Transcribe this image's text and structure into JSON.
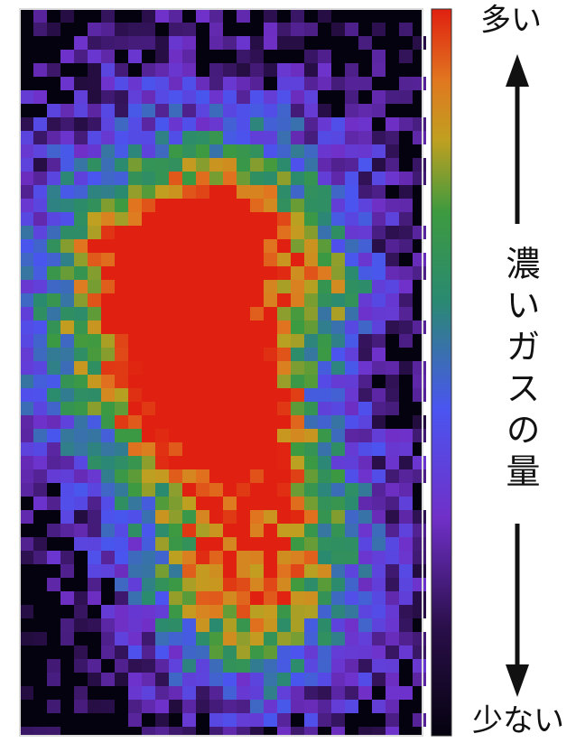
{
  "labels": {
    "top": "多い",
    "axis": "濃いガスの量",
    "bottom": "少ない"
  }
}
